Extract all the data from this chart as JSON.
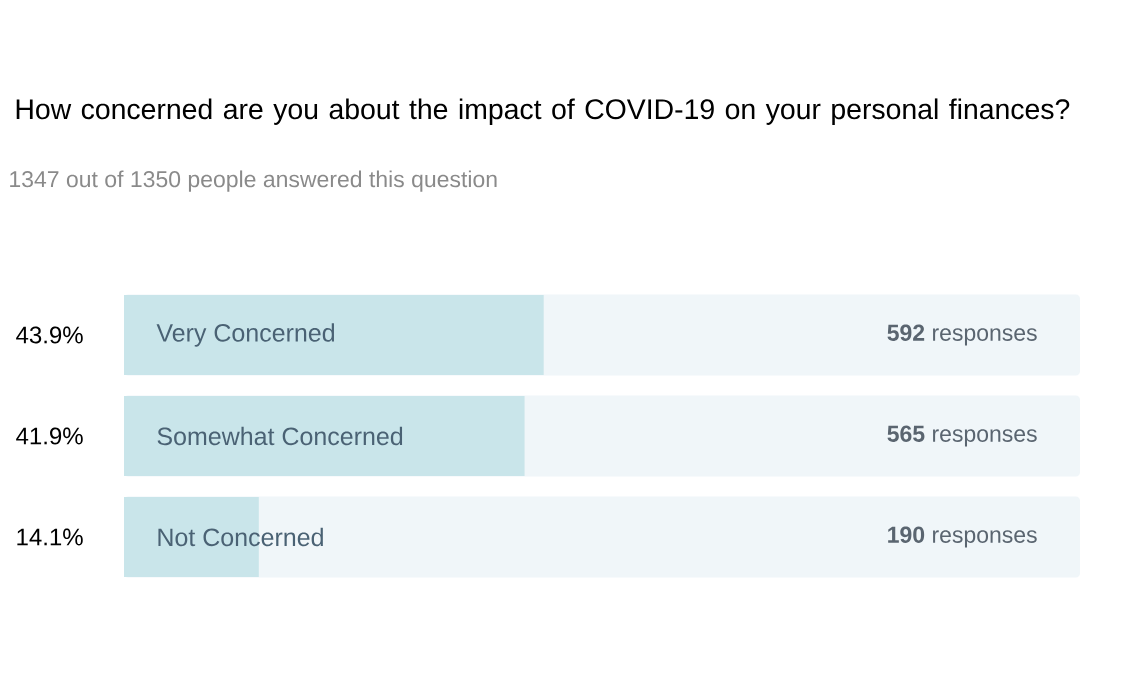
{
  "chart_data": {
    "type": "bar",
    "orientation": "horizontal",
    "title": "How concerned are you about the impact of COVID-19 on your personal finances?",
    "subtitle": "1347 out of 1350 people answered this question",
    "categories": [
      "Very Concerned",
      "Somewhat Concerned",
      "Not Concerned"
    ],
    "values": [
      43.9,
      41.9,
      14.1
    ],
    "color": "#c9e5ea",
    "value_labels": [
      "43.9%",
      "41.9%",
      "14.1%"
    ],
    "annotations": [
      "**592** responses",
      "**565** responses",
      "**190** responses"
    ],
    "xlim": [
      0,
      100
    ]
  }
}
